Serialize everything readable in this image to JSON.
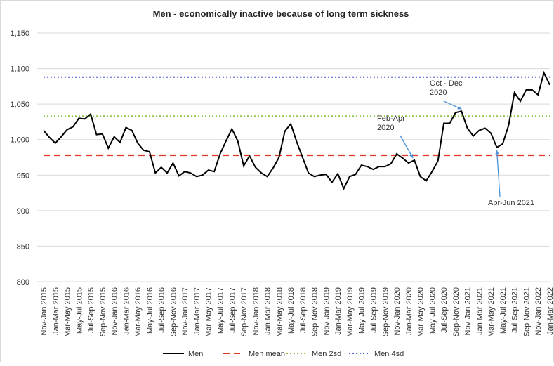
{
  "chart_data": {
    "type": "line",
    "title": "Men - economically inactive because of long term sickness",
    "categories": [
      "Nov-Jan 2015",
      null,
      "Jan-Mar 2015",
      null,
      "Mar-May 2015",
      null,
      "May-Jul 2015",
      null,
      "Jul-Sep 2015",
      null,
      "Sep-Nov 2015",
      null,
      "Nov-Jan 2016",
      null,
      "Jan-Mar 2016",
      null,
      "Mar-May 2016",
      null,
      "May-Jul 2016",
      null,
      "Jul-Sep 2016",
      null,
      "Sep-Nov 2016",
      null,
      "Nov-Jan 2017",
      null,
      "Jan-Mar 2017",
      null,
      "Mar-May 2017",
      null,
      "May-Jul 2017",
      null,
      "Jul-Sep 2017",
      null,
      "Sep-Nov 2017",
      null,
      "Nov-Jan 2018",
      null,
      "Jan-Mar 2018",
      null,
      "Mar-May 2018",
      null,
      "May-Jul 2018",
      null,
      "Jul-Sep 2018",
      null,
      "Sep-Nov 2018",
      null,
      "Nov-Jan 2019",
      null,
      "Jan-Mar 2019",
      null,
      "Mar-May 2019",
      null,
      "May-Jul 2019",
      null,
      "Jul-Sep 2019",
      null,
      "Sep-Nov 2019",
      null,
      "Nov-Jan 2020",
      null,
      "Jan-Mar 2020",
      null,
      "Mar-May 2020",
      null,
      "May-Jul 2020",
      null,
      "Jul-Sep 2020",
      null,
      "Sep-Nov 2020",
      null,
      "Nov-Jan 2021",
      null,
      "Jan-Mar 2021",
      null,
      "Mar-May 2021",
      null,
      "May-Jul 2021",
      null,
      "Jul-Sep 2021",
      null,
      "Sep-Nov 2021",
      null,
      "Nov-Jan 2022",
      null,
      "Jan-Mar 2022"
    ],
    "series": [
      {
        "name": "Men",
        "color": "#000000",
        "values": [
          1013,
          1003,
          995,
          1004,
          1014,
          1018,
          1030,
          1029,
          1036,
          1007,
          1008,
          988,
          1004,
          996,
          1017,
          1013,
          995,
          985,
          983,
          953,
          961,
          953,
          967,
          949,
          955,
          953,
          948,
          950,
          957,
          955,
          980,
          998,
          1015,
          998,
          963,
          977,
          961,
          953,
          948,
          960,
          975,
          1012,
          1022,
          997,
          975,
          953,
          948,
          950,
          951,
          940,
          952,
          931,
          948,
          951,
          964,
          962,
          958,
          962,
          962,
          966,
          980,
          974,
          967,
          971,
          948,
          942,
          955,
          970,
          1023,
          1023,
          1038,
          1040,
          1016,
          1005,
          1013,
          1016,
          1009,
          989,
          994,
          1020,
          1066,
          1054,
          1070,
          1070,
          1063,
          1094,
          1077
        ]
      }
    ],
    "reference_lines": [
      {
        "name": "Men mean",
        "color": "#e0392b",
        "style": "dashed",
        "value": 978
      },
      {
        "name": "Men 2sd",
        "color": "#8dbf3f",
        "style": "dotted",
        "value": 1033
      },
      {
        "name": "Men 4sd",
        "color": "#4a5bd6",
        "style": "dotted",
        "value": 1088
      }
    ],
    "annotations": [
      {
        "text": [
          "Oct - Dec",
          "2020"
        ],
        "index": 71
      },
      {
        "text": [
          "Feb-Apr",
          "2020"
        ],
        "index": 63
      },
      {
        "text": [
          "Apr-Jun 2021"
        ],
        "index": 77
      }
    ],
    "ylim": [
      800,
      1150
    ],
    "yticks": [
      800,
      850,
      900,
      950,
      {
        "value": 1000,
        "label": "1,000"
      },
      {
        "value": 1050,
        "label": "1,050"
      },
      {
        "value": 1100,
        "label": "1,100"
      },
      {
        "value": 1150,
        "label": "1,150"
      }
    ],
    "grid": true
  }
}
